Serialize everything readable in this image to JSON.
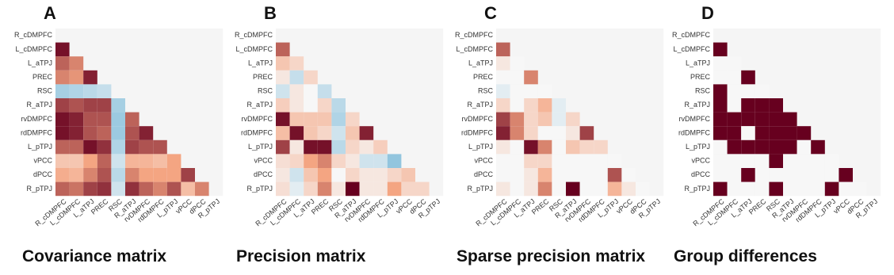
{
  "chart_data": [
    {
      "type": "heatmap",
      "panel": "A",
      "title": "Covariance matrix",
      "categories": [
        "R_cDMPFC",
        "L_cDMPFC",
        "L_aTPJ",
        "PREC",
        "RSC",
        "R_aTPJ",
        "rvDMPFC",
        "rdDMPFC",
        "L_pTPJ",
        "vPCC",
        "dPCC",
        "R_pTPJ"
      ],
      "zlim": [
        -1,
        1
      ],
      "colorscale": [
        "#2166ac",
        "#92c5de",
        "#f7f7f7",
        "#f4a582",
        "#67001f"
      ],
      "values": [
        [],
        [
          0.95
        ],
        [
          0.7,
          0.6
        ],
        [
          0.6,
          0.55,
          0.9
        ],
        [
          -0.4,
          -0.35,
          -0.3,
          -0.25
        ],
        [
          0.8,
          0.75,
          0.8,
          0.8,
          -0.4
        ],
        [
          0.95,
          0.9,
          0.75,
          0.75,
          -0.45,
          0.7
        ],
        [
          0.95,
          0.9,
          0.75,
          0.7,
          -0.45,
          0.75,
          0.9
        ],
        [
          0.7,
          0.7,
          0.95,
          0.85,
          -0.35,
          0.8,
          0.75,
          0.75
        ],
        [
          0.3,
          0.3,
          0.5,
          0.7,
          -0.2,
          0.4,
          0.4,
          0.35,
          0.5
        ],
        [
          0.45,
          0.4,
          0.6,
          0.75,
          -0.3,
          0.6,
          0.5,
          0.5,
          0.5,
          0.8
        ],
        [
          0.7,
          0.65,
          0.8,
          0.85,
          -0.2,
          0.85,
          0.7,
          0.6,
          0.75,
          0.35,
          0.6
        ]
      ]
    },
    {
      "type": "heatmap",
      "panel": "B",
      "title": "Precision matrix",
      "categories": [
        "R_cDMPFC",
        "L_cDMPFC",
        "L_aTPJ",
        "PREC",
        "RSC",
        "R_aTPJ",
        "rvDMPFC",
        "rdDMPFC",
        "L_pTPJ",
        "vPCC",
        "dPCC",
        "R_pTPJ"
      ],
      "zlim": [
        -1,
        1
      ],
      "colorscale": [
        "#2166ac",
        "#92c5de",
        "#f7f7f7",
        "#f4a582",
        "#67001f"
      ],
      "values": [
        [],
        [
          0.7
        ],
        [
          0.3,
          0.2
        ],
        [
          0.1,
          -0.25,
          0.2
        ],
        [
          -0.2,
          0.1,
          0,
          -0.25
        ],
        [
          0.25,
          0.1,
          0,
          0.2,
          -0.3
        ],
        [
          0.95,
          0.3,
          0.3,
          0.3,
          -0.35,
          0.2
        ],
        [
          0.35,
          0.95,
          0.3,
          0.2,
          -0.2,
          0.3,
          0.9
        ],
        [
          0.8,
          0.1,
          0.95,
          0.95,
          -0.3,
          0.2,
          0.1,
          0.25
        ],
        [
          0.15,
          0.2,
          0.5,
          0.6,
          0.2,
          0.1,
          -0.2,
          -0.2,
          -0.5
        ],
        [
          0.1,
          -0.2,
          0.3,
          0.5,
          0,
          0.2,
          0.1,
          0.1,
          0.2,
          0.3
        ],
        [
          0.15,
          -0.1,
          0.2,
          0.6,
          0.1,
          1,
          0.1,
          0.1,
          0.5,
          0.2,
          0.2
        ]
      ]
    },
    {
      "type": "heatmap",
      "panel": "C",
      "title": "Sparse precision matrix",
      "categories": [
        "R_cDMPFC",
        "L_cDMPFC",
        "L_aTPJ",
        "PREC",
        "RSC",
        "R_aTPJ",
        "rvDMPFC",
        "rdDMPFC",
        "L_pTPJ",
        "vPCC",
        "dPCC",
        "R_pTPJ"
      ],
      "zlim": [
        -1,
        1
      ],
      "colorscale": [
        "#2166ac",
        "#92c5de",
        "#f7f7f7",
        "#f4a582",
        "#67001f"
      ],
      "values": [
        [],
        [
          0.7
        ],
        [
          0.1,
          0
        ],
        [
          0,
          0,
          0.6
        ],
        [
          -0.1,
          0,
          0,
          0
        ],
        [
          0.2,
          0,
          0.2,
          0.4,
          -0.1
        ],
        [
          0.8,
          0.6,
          0.2,
          0.3,
          -0.1,
          0.2
        ],
        [
          0.9,
          0.6,
          0.2,
          0,
          0,
          0.1,
          0.8
        ],
        [
          0.1,
          0,
          0.95,
          0.6,
          0,
          0.3,
          0.2,
          0.2
        ],
        [
          0,
          0,
          0.2,
          0.2,
          0,
          0,
          0,
          0,
          0
        ],
        [
          0,
          0,
          0.1,
          0.4,
          0,
          0,
          0,
          0,
          0.75,
          0
        ],
        [
          0.1,
          0,
          0.1,
          0.6,
          0,
          1,
          0,
          0,
          0.4,
          0.1,
          0
        ]
      ]
    },
    {
      "type": "heatmap",
      "panel": "D",
      "title": "Group differences",
      "categories": [
        "R_cDMPFC",
        "L_cDMPFC",
        "L_aTPJ",
        "PREC",
        "RSC",
        "R_aTPJ",
        "rvDMPFC",
        "rdDMPFC",
        "L_pTPJ",
        "vPCC",
        "dPCC",
        "R_pTPJ"
      ],
      "zlim": [
        -1,
        1
      ],
      "colorscale": [
        "#2166ac",
        "#92c5de",
        "#f7f7f7",
        "#f4a582",
        "#67001f"
      ],
      "values": [
        [],
        [
          1
        ],
        [
          0,
          0
        ],
        [
          0,
          0,
          1
        ],
        [
          1,
          0,
          0,
          0
        ],
        [
          1,
          0,
          1,
          1,
          1
        ],
        [
          1,
          1,
          1,
          1,
          1,
          1
        ],
        [
          1,
          1,
          0,
          1,
          1,
          1,
          1
        ],
        [
          0,
          1,
          1,
          1,
          1,
          1,
          0,
          1
        ],
        [
          0,
          0,
          0,
          0,
          1,
          0,
          0,
          0,
          0
        ],
        [
          0,
          0,
          1,
          0,
          0,
          0,
          0,
          0,
          0,
          1
        ],
        [
          1,
          0,
          0,
          0,
          1,
          0,
          0,
          0,
          1,
          0,
          0
        ]
      ]
    }
  ]
}
